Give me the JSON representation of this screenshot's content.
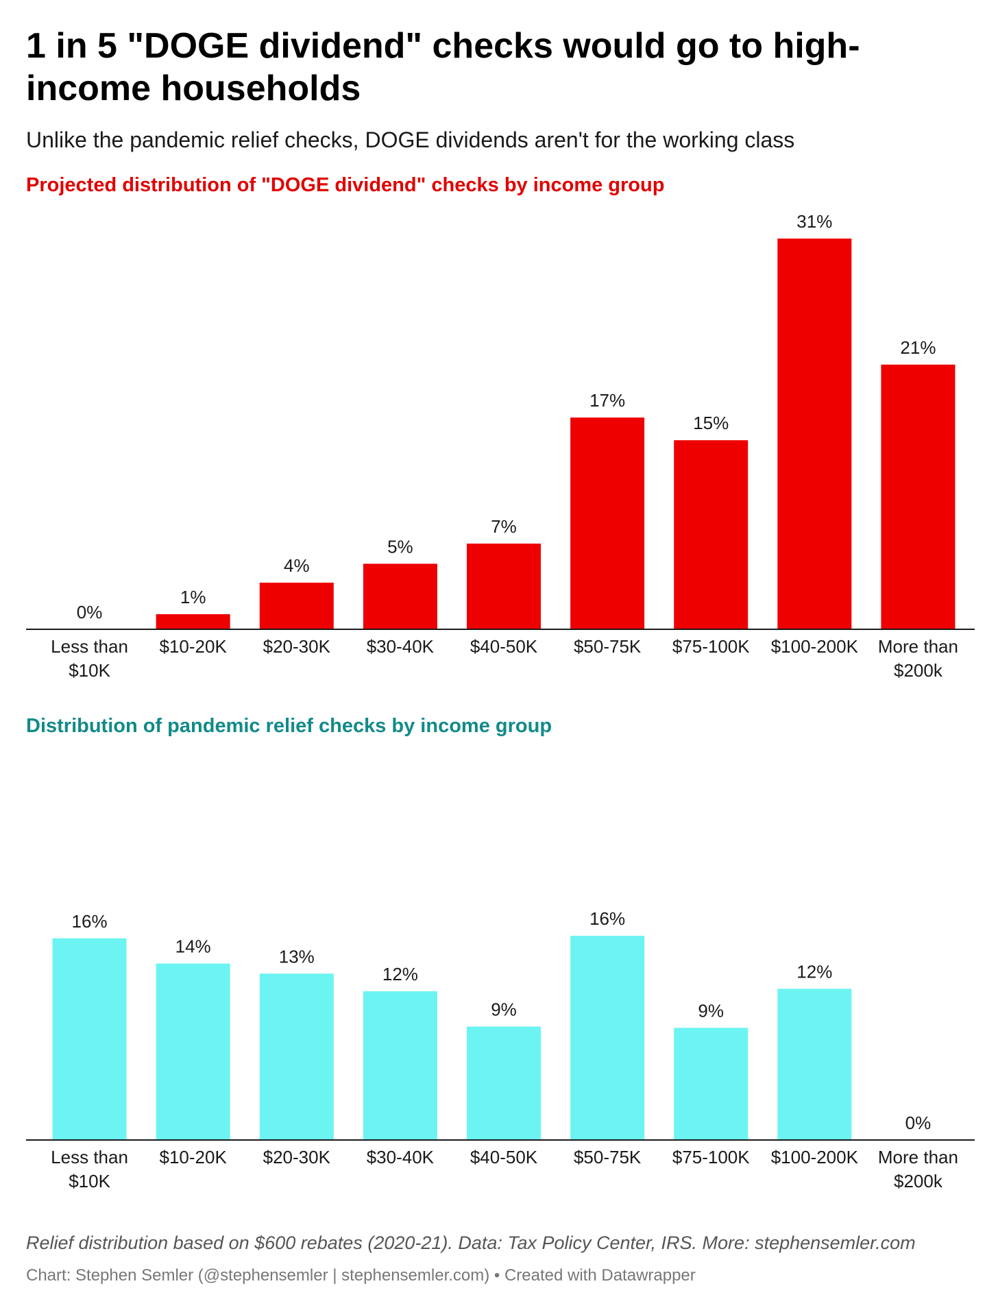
{
  "title": "1 in 5 \"DOGE dividend\" checks would go to high-income households",
  "subtitle": "Unlike the pandemic relief checks, DOGE dividends aren't for the working class",
  "notes": "Relief distribution based on $600 rebates (2020-21). Data: Tax Policy Center, IRS. More: stephensemler.com",
  "byline": "Chart: Stephen Semler (@stephensemler | stephensemler.com) • Created with Datawrapper",
  "chart_data": [
    {
      "type": "bar",
      "title": "Projected distribution of \"DOGE dividend\" checks by income group",
      "title_color": "#e00000",
      "bar_color": "#ee0000",
      "categories": [
        "Less than $10K",
        "$10-20K",
        "$20-30K",
        "$30-40K",
        "$40-50K",
        "$50-75K",
        "$75-100K",
        "$100-200K",
        "More than $200k"
      ],
      "category_lines": [
        [
          "Less than",
          "$10K"
        ],
        [
          "$10-20K"
        ],
        [
          "$20-30K"
        ],
        [
          "$30-40K"
        ],
        [
          "$40-50K"
        ],
        [
          "$50-75K"
        ],
        [
          "$75-100K"
        ],
        [
          "$100-200K"
        ],
        [
          "More than",
          "$200k"
        ]
      ],
      "values": [
        0,
        1.2,
        3.7,
        5.2,
        6.8,
        16.8,
        15.0,
        31.0,
        21.0
      ],
      "labels": [
        "0%",
        "1%",
        "4%",
        "5%",
        "7%",
        "17%",
        "15%",
        "31%",
        "21%"
      ],
      "ylim": [
        0,
        31
      ],
      "grid": false
    },
    {
      "type": "bar",
      "title": "Distribution of pandemic relief checks by income group",
      "title_color": "#128a8a",
      "bar_color": "#6cf4f2",
      "categories": [
        "Less than $10K",
        "$10-20K",
        "$20-30K",
        "$30-40K",
        "$40-50K",
        "$50-75K",
        "$75-100K",
        "$100-200K",
        "More than $200k"
      ],
      "category_lines": [
        [
          "Less than",
          "$10K"
        ],
        [
          "$10-20K"
        ],
        [
          "$20-30K"
        ],
        [
          "$30-40K"
        ],
        [
          "$40-50K"
        ],
        [
          "$50-75K"
        ],
        [
          "$75-100K"
        ],
        [
          "$100-200K"
        ],
        [
          "More than",
          "$200k"
        ]
      ],
      "values": [
        16.0,
        14.0,
        13.2,
        11.8,
        9.0,
        16.2,
        8.9,
        12.0,
        0
      ],
      "labels": [
        "16%",
        "14%",
        "13%",
        "12%",
        "9%",
        "16%",
        "9%",
        "12%",
        "0%"
      ],
      "ylim": [
        0,
        31
      ],
      "grid": false
    }
  ]
}
